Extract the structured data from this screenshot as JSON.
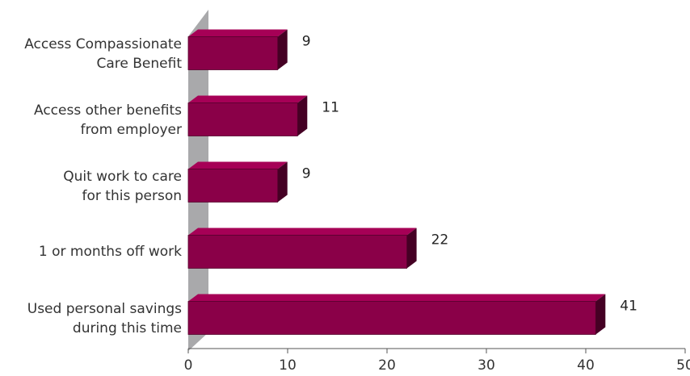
{
  "chart_data": {
    "type": "bar",
    "orientation": "horizontal",
    "categories": [
      "Access Compassionate Care Benefit",
      "Access other benefits from employer",
      "Quit work to care for this person",
      "1 or months off work",
      "Used personal savings during this time"
    ],
    "values": [
      9,
      11,
      9,
      22,
      41
    ],
    "color": "#8a0048",
    "xlim": [
      0,
      50
    ],
    "xticks": [
      0,
      10,
      20,
      30,
      40,
      50
    ]
  }
}
